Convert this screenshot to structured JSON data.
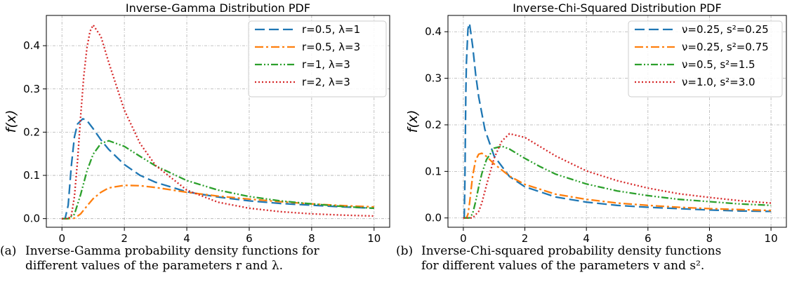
{
  "chart_data": [
    {
      "type": "line",
      "title": "Inverse-Gamma Distribution PDF",
      "xlabel": "x",
      "ylabel": "f(x)",
      "xlim": [
        -0.5,
        10.5
      ],
      "ylim": [
        -0.02,
        0.47
      ],
      "xticks": [
        0,
        2,
        4,
        6,
        8,
        10
      ],
      "yticks": [
        0.0,
        0.1,
        0.2,
        0.3,
        0.4
      ],
      "grid": true,
      "legend_position": "top-right",
      "series": [
        {
          "name": "r=0.5, λ=1",
          "color": "#1f77b4",
          "dash": "dashed",
          "x": [
            0,
            0.1,
            0.2,
            0.3,
            0.4,
            0.5,
            0.67,
            0.8,
            1.0,
            1.25,
            1.5,
            2,
            2.5,
            3,
            4,
            5,
            6,
            7,
            8,
            9,
            10
          ],
          "y": [
            0.0,
            0.0,
            0.031,
            0.122,
            0.189,
            0.219,
            0.231,
            0.227,
            0.208,
            0.182,
            0.16,
            0.125,
            0.1,
            0.084,
            0.062,
            0.05,
            0.041,
            0.035,
            0.031,
            0.027,
            0.024
          ]
        },
        {
          "name": "r=0.5, λ=3",
          "color": "#ff7f0e",
          "dash": "dashdot",
          "x": [
            0,
            0.2,
            0.4,
            0.6,
            0.8,
            1.0,
            1.25,
            1.5,
            2,
            2.5,
            3,
            4,
            5,
            6,
            7,
            8,
            9,
            10
          ],
          "y": [
            0.0,
            0.0,
            0.001,
            0.011,
            0.029,
            0.046,
            0.061,
            0.071,
            0.077,
            0.076,
            0.072,
            0.061,
            0.052,
            0.045,
            0.039,
            0.034,
            0.03,
            0.027
          ]
        },
        {
          "name": "r=1, λ=3",
          "color": "#2ca02c",
          "dash": "dashdotdot",
          "x": [
            0,
            0.2,
            0.4,
            0.6,
            0.8,
            1.0,
            1.25,
            1.5,
            2,
            2.5,
            3,
            4,
            5,
            6,
            7,
            8,
            9,
            10
          ],
          "y": [
            0.0,
            0.0,
            0.01,
            0.056,
            0.11,
            0.149,
            0.174,
            0.18,
            0.167,
            0.144,
            0.122,
            0.088,
            0.066,
            0.051,
            0.041,
            0.034,
            0.028,
            0.024
          ]
        },
        {
          "name": "r=2, λ=3",
          "color": "#d62728",
          "dash": "dotted",
          "x": [
            0,
            0.2,
            0.3,
            0.4,
            0.5,
            0.6,
            0.7,
            0.8,
            0.9,
            1.0,
            1.25,
            1.5,
            2,
            2.5,
            3,
            4,
            5,
            6,
            7,
            8,
            9,
            10
          ],
          "y": [
            0.0,
            0.0,
            0.007,
            0.051,
            0.135,
            0.238,
            0.329,
            0.395,
            0.433,
            0.448,
            0.421,
            0.361,
            0.251,
            0.174,
            0.123,
            0.066,
            0.038,
            0.024,
            0.016,
            0.011,
            0.008,
            0.006
          ]
        }
      ]
    },
    {
      "type": "line",
      "title": "Inverse-Chi-Squared Distribution PDF",
      "xlabel": "x",
      "ylabel": "f(x)",
      "xlim": [
        -0.5,
        10.5
      ],
      "ylim": [
        -0.02,
        0.435
      ],
      "xticks": [
        0,
        2,
        4,
        6,
        8,
        10
      ],
      "yticks": [
        0.0,
        0.1,
        0.2,
        0.3,
        0.4
      ],
      "grid": true,
      "legend_position": "top-right",
      "series": [
        {
          "name": "ν=0.25, s²=0.25",
          "color": "#1f77b4",
          "dash": "dashed",
          "x": [
            0,
            0.03,
            0.05,
            0.08,
            0.1,
            0.15,
            0.2,
            0.3,
            0.4,
            0.5,
            0.7,
            1.0,
            1.5,
            2,
            3,
            4,
            5,
            6,
            7,
            8,
            9,
            10
          ],
          "y": [
            0.0,
            0.002,
            0.075,
            0.263,
            0.334,
            0.406,
            0.418,
            0.37,
            0.309,
            0.26,
            0.19,
            0.133,
            0.089,
            0.067,
            0.045,
            0.034,
            0.027,
            0.023,
            0.02,
            0.017,
            0.015,
            0.014
          ]
        },
        {
          "name": "ν=0.25, s²=0.75",
          "color": "#ff7f0e",
          "dash": "dashdot",
          "x": [
            0,
            0.1,
            0.15,
            0.2,
            0.3,
            0.4,
            0.5,
            0.6,
            0.7,
            0.8,
            1.0,
            1.5,
            2,
            3,
            4,
            5,
            6,
            7,
            8,
            9,
            10
          ],
          "y": [
            0.0,
            0.0,
            0.008,
            0.031,
            0.09,
            0.124,
            0.137,
            0.139,
            0.135,
            0.129,
            0.116,
            0.09,
            0.072,
            0.051,
            0.04,
            0.032,
            0.027,
            0.023,
            0.02,
            0.018,
            0.016
          ]
        },
        {
          "name": "ν=0.5, s²=1.5",
          "color": "#2ca02c",
          "dash": "dashdotdot",
          "x": [
            0,
            0.2,
            0.3,
            0.4,
            0.5,
            0.6,
            0.75,
            1.0,
            1.25,
            1.5,
            2,
            2.5,
            3,
            4,
            5,
            6,
            7,
            8,
            9,
            10
          ],
          "y": [
            0.0,
            0.0,
            0.009,
            0.035,
            0.067,
            0.095,
            0.125,
            0.15,
            0.154,
            0.148,
            0.128,
            0.11,
            0.094,
            0.073,
            0.058,
            0.048,
            0.04,
            0.035,
            0.03,
            0.027
          ]
        },
        {
          "name": "ν=1.0, s²=3.0",
          "color": "#d62728",
          "dash": "dotted",
          "x": [
            0,
            0.3,
            0.5,
            0.6,
            0.75,
            1.0,
            1.25,
            1.5,
            2,
            2.5,
            3,
            4,
            5,
            6,
            7,
            8,
            9,
            10
          ],
          "y": [
            0.0,
            0.0,
            0.014,
            0.032,
            0.07,
            0.128,
            0.165,
            0.181,
            0.173,
            0.153,
            0.133,
            0.101,
            0.08,
            0.064,
            0.052,
            0.044,
            0.037,
            0.032
          ]
        }
      ]
    }
  ],
  "captions": [
    {
      "tag": "(a)",
      "line1": "Inverse-Gamma probability density functions for",
      "line2": "different values of the parameters r and λ."
    },
    {
      "tag": "(b)",
      "line1": "Inverse-Chi-squared probability density functions",
      "line2": "for different values of the parameters v and s²."
    }
  ]
}
